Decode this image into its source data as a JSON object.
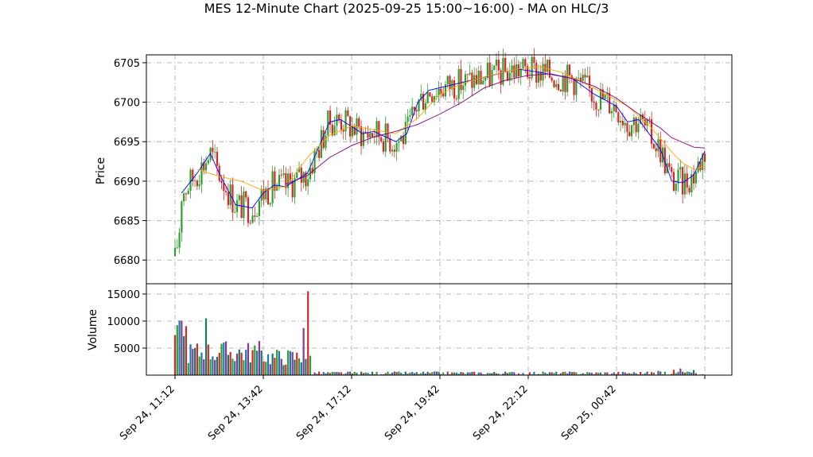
{
  "figure": {
    "title": "MES 12-Minute Chart (2025-09-25 15:00~16:00) - MA on HLC/3"
  },
  "chart_data": [
    {
      "type": "candlestick",
      "ylabel": "Price",
      "ylim": [
        6677.0,
        6706.0
      ],
      "yticks": [
        6680,
        6685,
        6690,
        6695,
        6700,
        6705
      ],
      "grid": true,
      "up_color": "#2ca02c",
      "down_color": "#d62728",
      "ma_series": [
        {
          "color": "#0000ff",
          "points": [
            [
              0.6,
              6688.5
            ],
            [
              2,
              6691
            ],
            [
              3.2,
              6693.5
            ],
            [
              4,
              6691
            ],
            [
              5.5,
              6687
            ],
            [
              7,
              6686.6
            ],
            [
              8,
              6688.5
            ],
            [
              9,
              6689.5
            ],
            [
              10,
              6689.3
            ],
            [
              12,
              6691
            ],
            [
              14,
              6697.5
            ],
            [
              15,
              6697.8
            ],
            [
              17,
              6696
            ],
            [
              18,
              6696.3
            ],
            [
              20,
              6695
            ],
            [
              21,
              6696
            ],
            [
              22,
              6700
            ],
            [
              23,
              6701.5
            ],
            [
              26,
              6702.5
            ],
            [
              29,
              6703.5
            ],
            [
              31,
              6704.2
            ],
            [
              33,
              6703.8
            ],
            [
              36,
              6703
            ],
            [
              38,
              6701
            ],
            [
              40,
              6699.5
            ],
            [
              41,
              6697.5
            ],
            [
              42,
              6697.8
            ],
            [
              44,
              6694
            ],
            [
              45,
              6690
            ],
            [
              46,
              6689.8
            ],
            [
              47,
              6690.8
            ],
            [
              48,
              6693.8
            ]
          ]
        },
        {
          "color": "#ffa500",
          "points": [
            [
              2,
              6691.5
            ],
            [
              4,
              6690.6
            ],
            [
              6,
              6690
            ],
            [
              8,
              6688.8
            ],
            [
              10,
              6689.3
            ],
            [
              12,
              6693
            ],
            [
              14,
              6695.8
            ],
            [
              16,
              6697
            ],
            [
              18,
              6696.5
            ],
            [
              20,
              6696
            ],
            [
              22,
              6698
            ],
            [
              24,
              6701
            ],
            [
              26,
              6702.4
            ],
            [
              28,
              6703.2
            ],
            [
              31,
              6704.2
            ],
            [
              33,
              6704.5
            ],
            [
              35,
              6703.8
            ],
            [
              37,
              6702.5
            ],
            [
              39,
              6701
            ],
            [
              41,
              6699.5
            ],
            [
              43,
              6697
            ],
            [
              45,
              6693.7
            ],
            [
              46,
              6692.3
            ],
            [
              47,
              6691.5
            ],
            [
              48,
              6691.9
            ]
          ]
        },
        {
          "color": "#800080",
          "points": [
            [
              10,
              6689.6
            ],
            [
              12,
              6690.7
            ],
            [
              14,
              6693
            ],
            [
              16,
              6694.5
            ],
            [
              18,
              6695.6
            ],
            [
              20,
              6696.3
            ],
            [
              22,
              6697.2
            ],
            [
              24,
              6698.5
            ],
            [
              26,
              6700
            ],
            [
              28,
              6701.8
            ],
            [
              30,
              6702.8
            ],
            [
              32,
              6703.4
            ],
            [
              34,
              6703.6
            ],
            [
              36,
              6703
            ],
            [
              38,
              6702
            ],
            [
              40,
              6700.5
            ],
            [
              42,
              6698.5
            ],
            [
              44,
              6696.7
            ],
            [
              45,
              6695.5
            ],
            [
              47,
              6694.3
            ],
            [
              48,
              6694.2
            ]
          ]
        }
      ]
    },
    {
      "type": "bar",
      "ylabel": "Volume",
      "ylim": [
        0,
        16900
      ],
      "yticks": [
        5000,
        10000,
        15000
      ],
      "grid": true,
      "bars_visible": 48,
      "notable_values": [
        10300,
        10400,
        10500,
        15500,
        8700
      ]
    }
  ],
  "xaxis": {
    "tick_labels": [
      "Sep 24, 11:12",
      "Sep 24, 13:42",
      "Sep 24, 17:12",
      "Sep 24, 19:42",
      "Sep 24, 22:12",
      "Sep 25, 00:42"
    ]
  }
}
